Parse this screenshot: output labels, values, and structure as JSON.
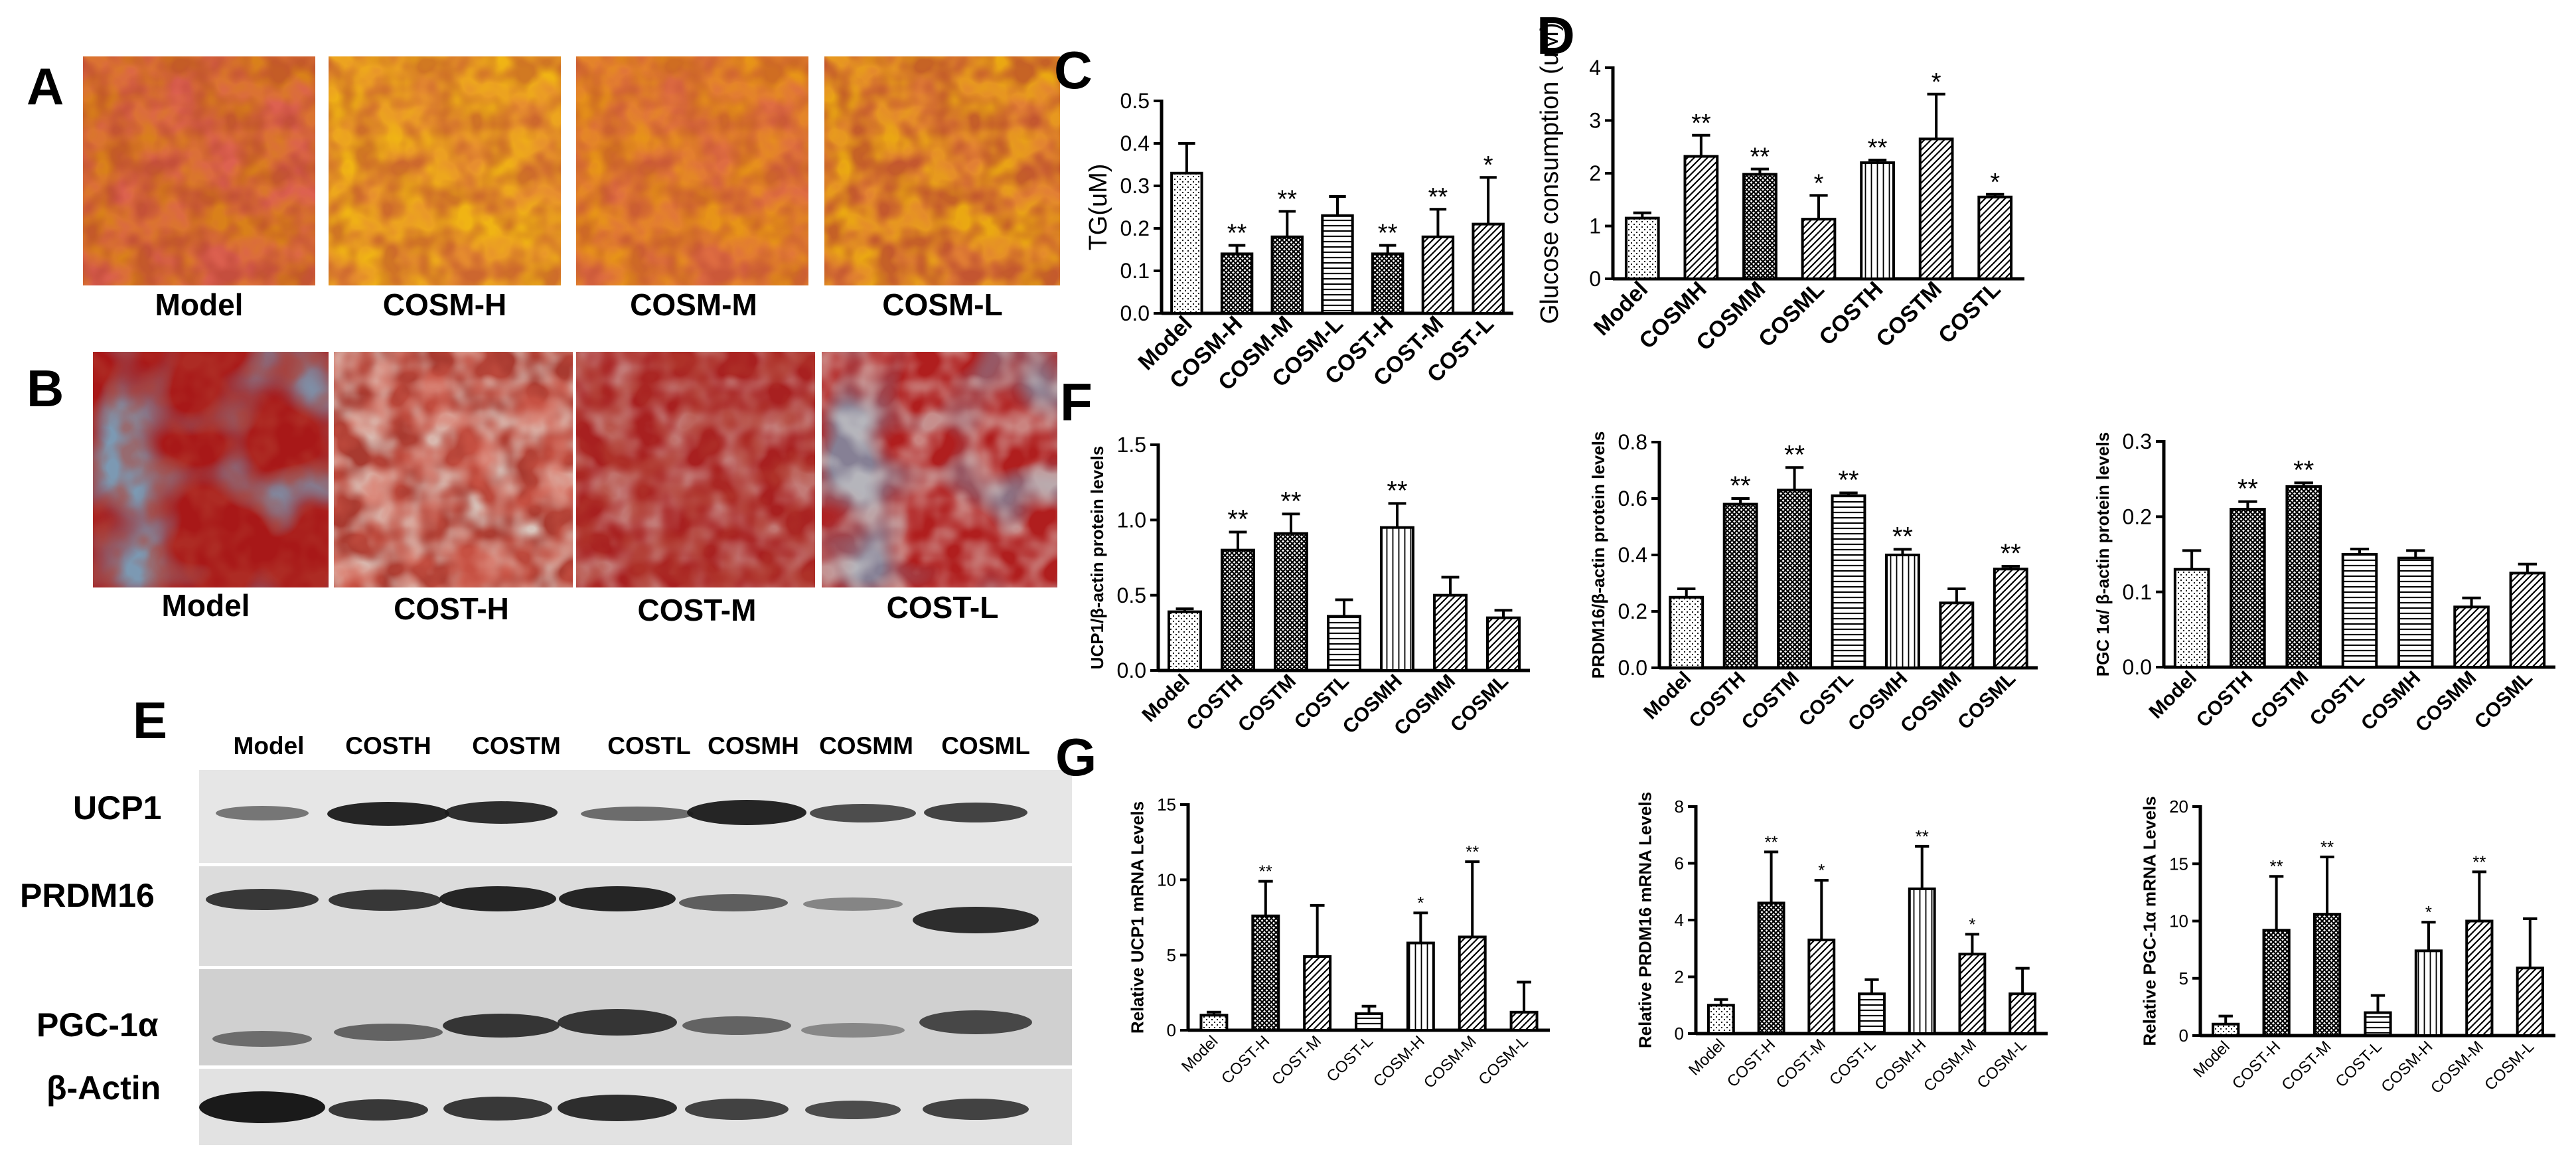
{
  "panels": {
    "A": {
      "label": "A",
      "captions": [
        "Model",
        "COSM-H",
        "COSM-M",
        "COSM-L"
      ],
      "image_icons": [
        "oil-red-o-stain-micrograph",
        "oil-red-o-stain-micrograph",
        "oil-red-o-stain-micrograph",
        "oil-red-o-stain-micrograph"
      ]
    },
    "B": {
      "label": "B",
      "captions": [
        "Model",
        "COST-H",
        "COST-M",
        "COST-L"
      ],
      "image_icons": [
        "stained-tissue-micrograph",
        "stained-tissue-micrograph",
        "stained-tissue-micrograph",
        "stained-tissue-micrograph"
      ]
    },
    "E": {
      "label": "E",
      "lanes": [
        "Model",
        "COSTH",
        "COSTM",
        "COSTL",
        "COSMH",
        "COSMM",
        "COSML"
      ],
      "rows": [
        "UCP1",
        "PRDM16",
        "PGC-1α",
        "β-Actin"
      ]
    },
    "C": {
      "label": "C"
    },
    "D": {
      "label": "D"
    },
    "F": {
      "label": "F"
    },
    "G": {
      "label": "G"
    }
  },
  "colors": {
    "bar_fill": "#ffffff",
    "stroke": "#000000",
    "stain_red": "#b8221c",
    "stain_orange": "#e0a21a",
    "stain_blue": "#4a6c8a"
  },
  "chart_data": [
    {
      "id": "C",
      "type": "bar",
      "ylabel": "TG(uM)",
      "ylim": [
        0,
        0.5
      ],
      "yticks": [
        "0.0",
        "0.1",
        "0.2",
        "0.3",
        "0.4",
        "0.5"
      ],
      "categories": [
        "Model",
        "COSM-H",
        "COSM-M",
        "COSM-L",
        "COST-H",
        "COST-M",
        "COST-L"
      ],
      "values": [
        0.33,
        0.14,
        0.18,
        0.23,
        0.14,
        0.18,
        0.21
      ],
      "errors": [
        0.07,
        0.02,
        0.06,
        0.045,
        0.02,
        0.065,
        0.11
      ],
      "annotations": [
        "",
        "**",
        "**",
        "",
        "**",
        "**",
        "*"
      ],
      "patterns": [
        "dots",
        "dense",
        "dense",
        "hlines",
        "dense",
        "diag",
        "diag"
      ]
    },
    {
      "id": "D",
      "type": "bar",
      "ylabel": "Glucose consumption (uM)",
      "ylim": [
        0,
        4
      ],
      "yticks": [
        "0",
        "1",
        "2",
        "3",
        "4"
      ],
      "categories": [
        "Model",
        "COSMH",
        "COSMM",
        "COSML",
        "COSTH",
        "COSTM",
        "COSTL"
      ],
      "values": [
        1.15,
        2.32,
        1.98,
        1.13,
        2.2,
        2.65,
        1.55
      ],
      "errors": [
        0.1,
        0.4,
        0.1,
        0.45,
        0.05,
        0.85,
        0.05
      ],
      "annotations": [
        "",
        "**",
        "**",
        "*",
        "**",
        "*",
        "*"
      ],
      "patterns": [
        "dots",
        "diag",
        "dense",
        "diag",
        "vlines",
        "diag",
        "diag"
      ]
    },
    {
      "id": "F1",
      "type": "bar",
      "ylabel": "UCP1/β-actin protein levels",
      "ylim": [
        0,
        1.5
      ],
      "yticks": [
        "0.0",
        "0.5",
        "1.0",
        "1.5"
      ],
      "categories": [
        "Model",
        "COSTH",
        "COSTM",
        "COSTL",
        "COSMH",
        "COSMM",
        "COSML"
      ],
      "values": [
        0.39,
        0.8,
        0.91,
        0.36,
        0.95,
        0.5,
        0.35
      ],
      "errors": [
        0.02,
        0.12,
        0.13,
        0.11,
        0.16,
        0.12,
        0.05
      ],
      "annotations": [
        "",
        "**",
        "**",
        "",
        "**",
        "",
        ""
      ],
      "patterns": [
        "dots",
        "dense",
        "dense",
        "hlines",
        "vlines",
        "diag",
        "diag"
      ]
    },
    {
      "id": "F2",
      "type": "bar",
      "ylabel": "PRDM16/β-actin protein levels",
      "ylim": [
        0,
        0.8
      ],
      "yticks": [
        "0.0",
        "0.2",
        "0.4",
        "0.6",
        "0.8"
      ],
      "categories": [
        "Model",
        "COSTH",
        "COSTM",
        "COSTL",
        "COSMH",
        "COSMM",
        "COSML"
      ],
      "values": [
        0.25,
        0.58,
        0.63,
        0.61,
        0.4,
        0.23,
        0.35
      ],
      "errors": [
        0.03,
        0.02,
        0.08,
        0.01,
        0.02,
        0.05,
        0.01
      ],
      "annotations": [
        "",
        "**",
        "**",
        "**",
        "**",
        "",
        "**"
      ],
      "patterns": [
        "dots",
        "dense",
        "dense",
        "hlines",
        "vlines",
        "diag",
        "diag"
      ]
    },
    {
      "id": "F3",
      "type": "bar",
      "ylabel": "PGC 1α/ β-actin protein levels",
      "ylim": [
        0,
        0.3
      ],
      "yticks": [
        "0.0",
        "0.1",
        "0.2",
        "0.3"
      ],
      "categories": [
        "Model",
        "COSTH",
        "COSTM",
        "COSTL",
        "COSMH",
        "COSMM",
        "COSML"
      ],
      "values": [
        0.13,
        0.21,
        0.24,
        0.15,
        0.145,
        0.08,
        0.125
      ],
      "errors": [
        0.025,
        0.01,
        0.005,
        0.007,
        0.01,
        0.012,
        0.012
      ],
      "annotations": [
        "",
        "**",
        "**",
        "",
        "",
        "",
        ""
      ],
      "patterns": [
        "dots",
        "dense",
        "dense",
        "hlines",
        "hlines",
        "diag",
        "diag"
      ]
    },
    {
      "id": "G1",
      "type": "bar",
      "ylabel": "Relative UCP1 mRNA Levels",
      "ylim": [
        0,
        15
      ],
      "yticks": [
        "0",
        "5",
        "10",
        "15"
      ],
      "categories": [
        "Model",
        "COST-H",
        "COST-M",
        "COST-L",
        "COSM-H",
        "COSM-M",
        "COSM-L"
      ],
      "values": [
        1.0,
        7.6,
        4.9,
        1.1,
        5.8,
        6.2,
        1.2
      ],
      "errors": [
        0.2,
        2.3,
        3.4,
        0.5,
        2.0,
        5.0,
        2.0
      ],
      "annotations": [
        "",
        "**",
        "",
        "",
        "*",
        "**",
        ""
      ],
      "patterns": [
        "dots",
        "dense",
        "diag",
        "hlines",
        "vlines",
        "diag",
        "diag"
      ]
    },
    {
      "id": "G2",
      "type": "bar",
      "ylabel": "Relative PRDM16 mRNA Levels",
      "ylim": [
        0,
        8
      ],
      "yticks": [
        "0",
        "2",
        "4",
        "6",
        "8"
      ],
      "categories": [
        "Model",
        "COST-H",
        "COST-M",
        "COST-L",
        "COSM-H",
        "COSM-M",
        "COSM-L"
      ],
      "values": [
        1.0,
        4.6,
        3.3,
        1.4,
        5.1,
        2.8,
        1.4
      ],
      "errors": [
        0.2,
        1.8,
        2.1,
        0.5,
        1.5,
        0.7,
        0.9
      ],
      "annotations": [
        "",
        "**",
        "*",
        "",
        "**",
        "*",
        ""
      ],
      "patterns": [
        "dots",
        "dense",
        "diag",
        "hlines",
        "vlines",
        "diag",
        "diag"
      ]
    },
    {
      "id": "G3",
      "type": "bar",
      "ylabel": "Relative PGC-1α mRNA Levels",
      "ylim": [
        0,
        20
      ],
      "yticks": [
        "0",
        "5",
        "10",
        "15",
        "20"
      ],
      "categories": [
        "Model",
        "COST-H",
        "COST-M",
        "COST-L",
        "COSM-H",
        "COSM-M",
        "COSM-L"
      ],
      "values": [
        1.0,
        9.2,
        10.6,
        2.0,
        7.4,
        10.0,
        5.9
      ],
      "errors": [
        0.7,
        4.7,
        5.0,
        1.5,
        2.5,
        4.3,
        4.3
      ],
      "annotations": [
        "",
        "**",
        "**",
        "",
        "*",
        "**",
        ""
      ],
      "patterns": [
        "dots",
        "dense",
        "dense",
        "hlines",
        "vlines",
        "diag",
        "diag"
      ]
    }
  ]
}
